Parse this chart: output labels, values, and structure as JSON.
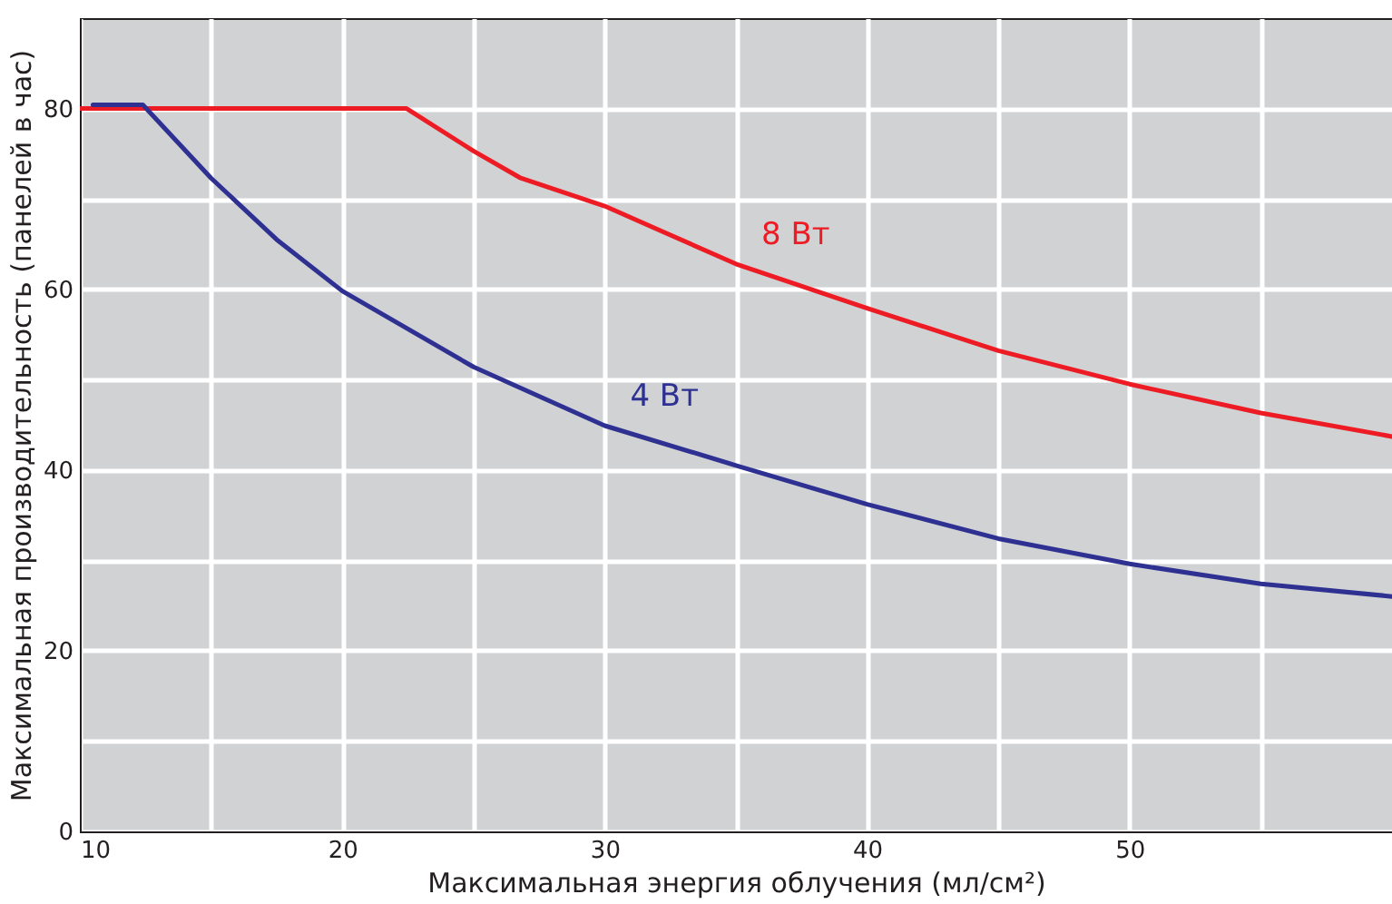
{
  "chart_data": {
    "type": "line",
    "xlabel": "Максимальная энергия облучения (мл/см²)",
    "ylabel": "Максимальная производительность (панелей в час)",
    "xlim": [
      10,
      60
    ],
    "ylim": [
      0,
      90
    ],
    "xticks": [
      10,
      {
        "value": 15,
        "label": null
      },
      20,
      {
        "value": 25,
        "label": null
      },
      30,
      {
        "value": 35,
        "label": null
      },
      40,
      {
        "value": 45,
        "label": null
      },
      50,
      {
        "value": 55,
        "label": null
      }
    ],
    "yticks": [
      0,
      {
        "value": 10,
        "label": null
      },
      20,
      {
        "value": 30,
        "label": null
      },
      40,
      {
        "value": 50,
        "label": null
      },
      60,
      {
        "value": 70,
        "label": null
      },
      80
    ],
    "grid": true,
    "legend": false,
    "marker": "none",
    "line_style": "solid",
    "series": [
      {
        "name": "8 Вт",
        "color": "#ed1c24",
        "x": [
          10,
          22.45,
          25,
          26.8,
          30,
          35,
          40,
          45,
          50,
          55,
          60
        ],
        "values": [
          80,
          80,
          75.3,
          72.3,
          69.2,
          62.8,
          57.9,
          53.2,
          49.5,
          46.3,
          43.7
        ]
      },
      {
        "name": "4 Вт",
        "color": "#2e3192",
        "x": [
          10.5,
          12.4,
          15,
          17.5,
          20,
          25,
          30,
          35,
          40,
          45,
          50,
          55,
          60
        ],
        "values": [
          80.4,
          80.4,
          72.3,
          65.5,
          59.8,
          51.4,
          44.9,
          40.5,
          36.2,
          32.4,
          29.6,
          27.4,
          26.0
        ]
      }
    ]
  }
}
